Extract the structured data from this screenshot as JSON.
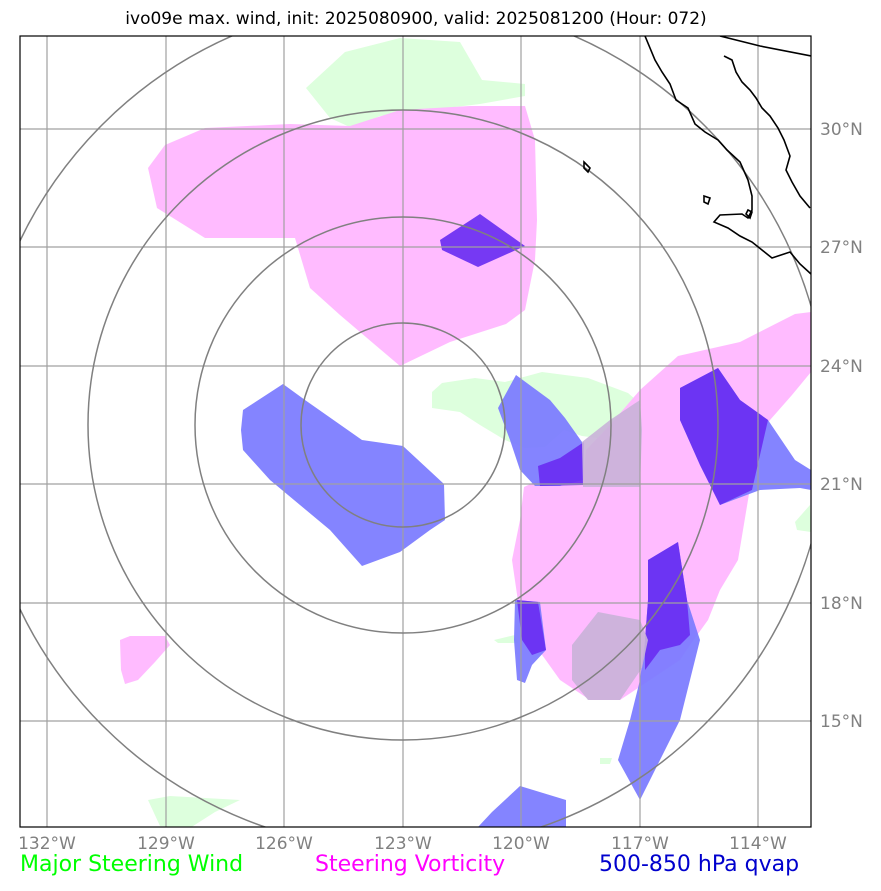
{
  "title": "ivo09e max. wind, init: 2025080900, valid: 2025081200 (Hour: 072)",
  "map": {
    "lon_ticks": [
      "132°W",
      "129°W",
      "126°W",
      "123°W",
      "120°W",
      "117°W",
      "114°W"
    ],
    "lat_ticks": [
      "30°N",
      "27°N",
      "24°N",
      "21°N",
      "18°N",
      "15°N"
    ],
    "center": {
      "lon": -123,
      "lat": 22.5
    },
    "range_rings_deg": [
      3,
      5.5,
      8,
      10.5
    ],
    "colors": {
      "steering_wind": "#ddffdd",
      "steering_vorticity": "#ffc0ff",
      "qvap": "#7a7aff",
      "qvap_strong": "#6e2df0",
      "grid": "#a0a0a0",
      "rings": "#808080",
      "coast": "#000000"
    }
  },
  "legend": {
    "wind": "Major Steering Wind",
    "vorticity": "Steering Vorticity",
    "qvap": "500-850 hPa qvap"
  }
}
